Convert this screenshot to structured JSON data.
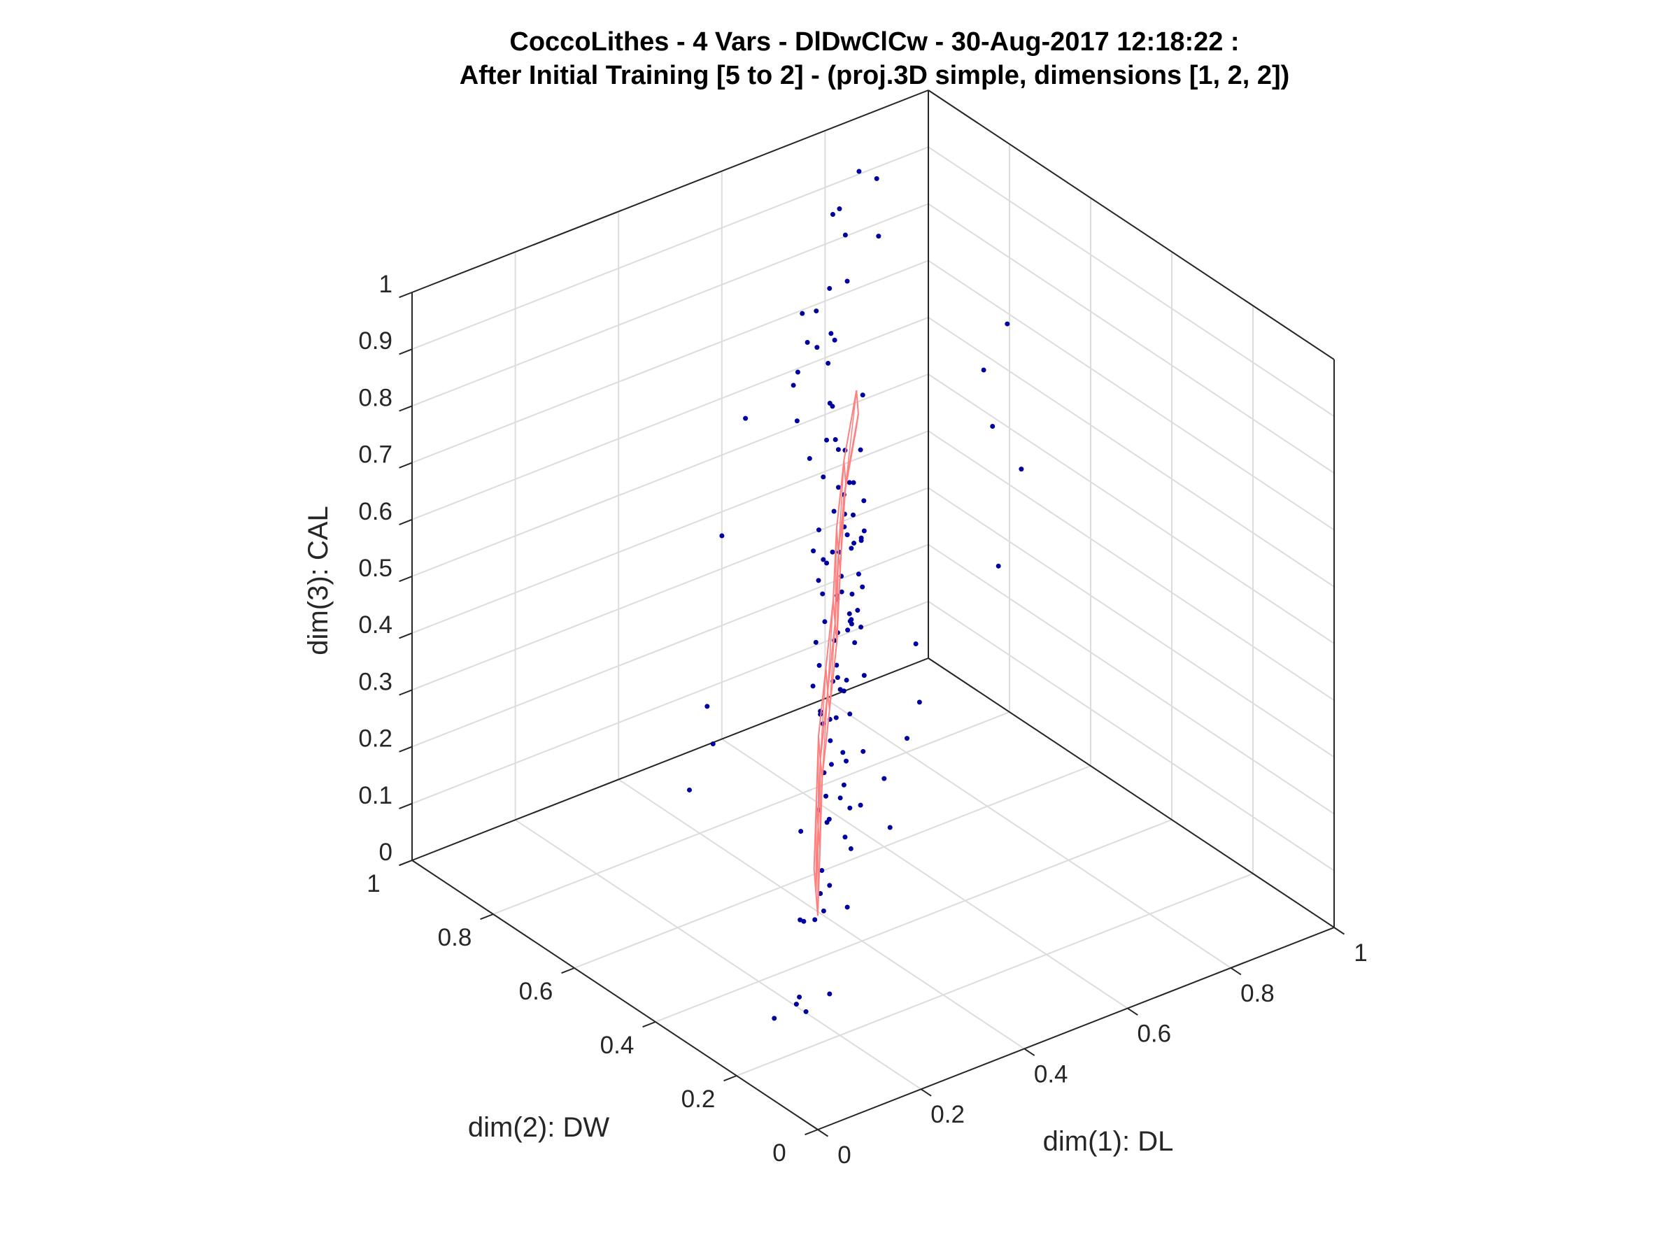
{
  "chart_data": {
    "type": "scatter3d",
    "title": [
      "CoccoLithes - 4 Vars - DlDwClCw - 30-Aug-2017 12:18:22 :",
      "After Initial Training [5 to 2] - (proj.3D simple, dimensions [1, 2, 2])"
    ],
    "xlabel": "dim(1): DL",
    "ylabel": "dim(2): DW",
    "zlabel": "dim(3): CAL",
    "xlim": [
      0,
      1
    ],
    "ylim": [
      0,
      1
    ],
    "zlim": [
      0,
      1
    ],
    "xticks": [
      "0",
      "0.2",
      "0.4",
      "0.6",
      "0.8",
      "1"
    ],
    "yticks": [
      "0",
      "0.2",
      "0.4",
      "0.6",
      "0.8",
      "1"
    ],
    "zticks": [
      "0",
      "0.1",
      "0.2",
      "0.3",
      "0.4",
      "0.5",
      "0.6",
      "0.7",
      "0.8",
      "0.9",
      "1"
    ],
    "grid": true,
    "colors": {
      "points": "#0000a0",
      "surface": "#ff7f7f",
      "box": "#262626",
      "grid": "#dcdcdc"
    },
    "series": [
      {
        "kind": "points",
        "points": [
          [
            0.45,
            0.52,
            0.61
          ],
          [
            0.38,
            0.41,
            0.55
          ],
          [
            0.62,
            0.7,
            0.48
          ],
          [
            0.3,
            0.36,
            0.72
          ],
          [
            0.51,
            0.6,
            0.33
          ],
          [
            0.42,
            0.47,
            0.4
          ],
          [
            0.55,
            0.66,
            0.58
          ],
          [
            0.33,
            0.4,
            0.28
          ],
          [
            0.6,
            0.72,
            0.66
          ],
          [
            0.47,
            0.5,
            0.51
          ],
          [
            0.26,
            0.3,
            0.45
          ],
          [
            0.7,
            0.84,
            0.55
          ],
          [
            0.4,
            0.52,
            0.63
          ],
          [
            0.52,
            0.55,
            0.22
          ],
          [
            0.36,
            0.38,
            0.6
          ],
          [
            0.58,
            0.69,
            0.4
          ],
          [
            0.44,
            0.58,
            0.75
          ],
          [
            0.31,
            0.33,
            0.34
          ],
          [
            0.66,
            0.76,
            0.3
          ],
          [
            0.49,
            0.54,
            0.46
          ],
          [
            0.22,
            0.27,
            0.25
          ],
          [
            0.57,
            0.62,
            0.7
          ],
          [
            0.39,
            0.49,
            0.36
          ],
          [
            0.63,
            0.78,
            0.62
          ],
          [
            0.46,
            0.48,
            0.18
          ],
          [
            0.35,
            0.45,
            0.52
          ],
          [
            0.54,
            0.58,
            0.57
          ],
          [
            0.28,
            0.35,
            0.15
          ],
          [
            0.68,
            0.8,
            0.44
          ],
          [
            0.43,
            0.44,
            0.68
          ],
          [
            0.5,
            0.63,
            0.26
          ],
          [
            0.37,
            0.42,
            0.8
          ],
          [
            0.61,
            0.67,
            0.35
          ],
          [
            0.24,
            0.25,
            0.38
          ],
          [
            0.56,
            0.71,
            0.52
          ],
          [
            0.41,
            0.46,
            0.3
          ],
          [
            0.72,
            0.88,
            0.6
          ],
          [
            0.48,
            0.57,
            0.42
          ],
          [
            0.32,
            0.37,
            0.5
          ],
          [
            0.59,
            0.64,
            0.78
          ],
          [
            0.45,
            0.55,
            0.12
          ],
          [
            0.53,
            0.61,
            0.64
          ],
          [
            0.29,
            0.32,
            0.62
          ],
          [
            0.65,
            0.74,
            0.5
          ],
          [
            0.4,
            0.43,
            0.22
          ],
          [
            0.74,
            0.9,
            0.7
          ],
          [
            0.36,
            0.47,
            0.43
          ],
          [
            0.57,
            0.68,
            0.2
          ],
          [
            0.47,
            0.51,
            0.73
          ],
          [
            0.27,
            0.34,
            0.56
          ],
          [
            0.62,
            0.73,
            0.38
          ],
          [
            0.43,
            0.5,
            0.55
          ],
          [
            0.34,
            0.36,
            0.1
          ],
          [
            0.55,
            0.59,
            0.48
          ],
          [
            0.69,
            0.82,
            0.34
          ],
          [
            0.39,
            0.46,
            0.66
          ],
          [
            0.51,
            0.57,
            0.28
          ],
          [
            0.25,
            0.29,
            0.32
          ],
          [
            0.6,
            0.75,
            0.58
          ],
          [
            0.46,
            0.53,
            0.36
          ],
          [
            0.78,
            0.92,
            0.78
          ],
          [
            0.33,
            0.39,
            0.42
          ],
          [
            0.52,
            0.65,
            0.45
          ],
          [
            0.42,
            0.45,
            0.58
          ],
          [
            0.64,
            0.7,
            0.24
          ],
          [
            0.2,
            0.24,
            0.2
          ],
          [
            0.58,
            0.66,
            0.62
          ],
          [
            0.37,
            0.4,
            0.47
          ],
          [
            0.49,
            0.61,
            0.54
          ],
          [
            0.71,
            0.79,
            0.48
          ],
          [
            0.44,
            0.49,
            0.26
          ],
          [
            0.3,
            0.38,
            0.68
          ],
          [
            0.56,
            0.63,
            0.4
          ],
          [
            0.66,
            0.81,
            0.66
          ],
          [
            0.41,
            0.44,
            0.14
          ],
          [
            0.53,
            0.56,
            0.6
          ],
          [
            0.35,
            0.43,
            0.3
          ],
          [
            0.61,
            0.71,
            0.53
          ],
          [
            0.48,
            0.52,
            0.44
          ],
          [
            0.27,
            0.31,
            0.4
          ],
          [
            0.8,
            0.95,
            0.84
          ],
          [
            0.38,
            0.48,
            0.2
          ],
          [
            0.59,
            0.65,
            0.46
          ],
          [
            0.45,
            0.5,
            0.65
          ],
          [
            0.23,
            0.28,
            0.5
          ],
          [
            0.67,
            0.77,
            0.42
          ],
          [
            0.5,
            0.59,
            0.36
          ],
          [
            0.32,
            0.34,
            0.24
          ],
          [
            0.54,
            0.62,
            0.71
          ],
          [
            0.43,
            0.53,
            0.49
          ],
          [
            0.15,
            0.22,
            0.05
          ],
          [
            0.12,
            0.26,
            0.03
          ],
          [
            0.18,
            0.2,
            0.08
          ],
          [
            0.1,
            0.18,
            0.1
          ],
          [
            0.2,
            0.3,
            0.02
          ],
          [
            0.85,
            0.98,
            0.92
          ],
          [
            0.82,
            0.99,
            0.86
          ],
          [
            0.88,
            0.97,
            0.8
          ],
          [
            0.9,
            1.0,
            0.88
          ],
          [
            0.76,
            0.93,
            0.9
          ],
          [
            0.95,
            0.8,
            0.62
          ],
          [
            0.98,
            0.78,
            0.7
          ],
          [
            0.92,
            0.74,
            0.56
          ],
          [
            0.9,
            0.7,
            0.34
          ],
          [
            0.96,
            0.72,
            0.48
          ],
          [
            0.1,
            0.4,
            0.52
          ],
          [
            0.08,
            0.36,
            0.48
          ],
          [
            0.05,
            0.38,
            0.4
          ],
          [
            0.16,
            0.44,
            0.78
          ],
          [
            0.3,
            0.56,
            0.88
          ],
          [
            0.48,
            0.66,
            0.85
          ],
          [
            0.52,
            0.7,
            0.92
          ],
          [
            0.58,
            0.74,
            0.82
          ],
          [
            0.64,
            0.84,
            0.76
          ],
          [
            0.44,
            0.62,
            0.86
          ],
          [
            0.6,
            0.6,
            0.12
          ],
          [
            0.66,
            0.62,
            0.16
          ],
          [
            0.7,
            0.64,
            0.2
          ],
          [
            0.58,
            0.56,
            0.06
          ],
          [
            0.74,
            0.7,
            0.26
          ],
          [
            0.28,
            0.4,
            0.08
          ],
          [
            0.34,
            0.44,
            0.04
          ],
          [
            0.4,
            0.48,
            0.06
          ],
          [
            0.24,
            0.34,
            0.12
          ],
          [
            0.36,
            0.5,
            0.16
          ],
          [
            0.46,
            0.56,
            0.92
          ],
          [
            0.5,
            0.64,
            0.96
          ],
          [
            0.56,
            0.68,
            0.88
          ],
          [
            0.62,
            0.76,
            0.9
          ],
          [
            0.4,
            0.56,
            0.84
          ]
        ]
      },
      {
        "kind": "surface",
        "grid": [
          [
            [
              0.33,
              0.42,
              0.06
            ],
            [
              0.35,
              0.45,
              0.08
            ],
            [
              0.37,
              0.48,
              0.1
            ]
          ],
          [
            [
              0.35,
              0.44,
              0.16
            ],
            [
              0.37,
              0.47,
              0.18
            ],
            [
              0.39,
              0.5,
              0.2
            ]
          ],
          [
            [
              0.37,
              0.46,
              0.27
            ],
            [
              0.39,
              0.49,
              0.28
            ],
            [
              0.41,
              0.52,
              0.3
            ]
          ],
          [
            [
              0.4,
              0.48,
              0.37
            ],
            [
              0.42,
              0.51,
              0.38
            ],
            [
              0.44,
              0.54,
              0.4
            ]
          ],
          [
            [
              0.43,
              0.5,
              0.47
            ],
            [
              0.45,
              0.53,
              0.48
            ],
            [
              0.47,
              0.56,
              0.5
            ]
          ],
          [
            [
              0.46,
              0.53,
              0.57
            ],
            [
              0.48,
              0.56,
              0.58
            ],
            [
              0.5,
              0.59,
              0.6
            ]
          ],
          [
            [
              0.49,
              0.56,
              0.67
            ],
            [
              0.51,
              0.58,
              0.68
            ],
            [
              0.53,
              0.61,
              0.7
            ]
          ],
          [
            [
              0.53,
              0.58,
              0.77
            ],
            [
              0.55,
              0.6,
              0.78
            ],
            [
              0.57,
              0.63,
              0.8
            ]
          ]
        ]
      }
    ]
  }
}
